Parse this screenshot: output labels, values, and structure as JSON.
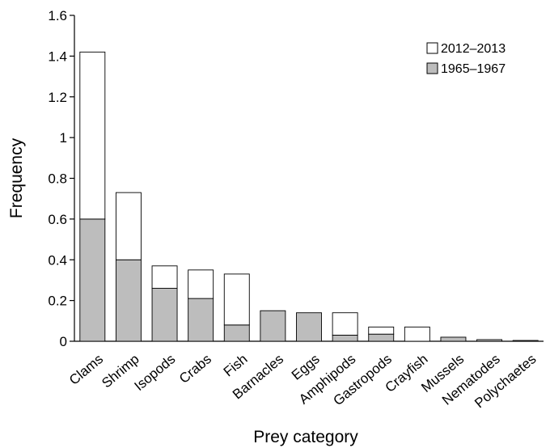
{
  "chart_data": {
    "type": "bar",
    "stacked": true,
    "categories": [
      "Clams",
      "Shrimp",
      "Isopods",
      "Crabs",
      "Fish",
      "Barnacles",
      "Eggs",
      "Amphipods",
      "Gastropods",
      "Crayfish",
      "Mussels",
      "Nematodes",
      "Polychaetes"
    ],
    "series": [
      {
        "name": "1965–1967",
        "color": "#bdbdbd",
        "values": [
          0.6,
          0.4,
          0.26,
          0.21,
          0.08,
          0.15,
          0.14,
          0.03,
          0.035,
          0.0,
          0.02,
          0.008,
          0.004
        ]
      },
      {
        "name": "2012–2013",
        "color": "#ffffff",
        "values": [
          0.82,
          0.33,
          0.11,
          0.14,
          0.25,
          0.0,
          0.0,
          0.11,
          0.035,
          0.07,
          0.0,
          0.0,
          0.0
        ]
      }
    ],
    "legend_order": [
      "2012–2013",
      "1965–1967"
    ],
    "legend_placement": "top-right",
    "title": "",
    "xlabel": "Prey category",
    "ylabel": "Frequency",
    "ylim": [
      0,
      1.6
    ],
    "yticks": [
      0,
      0.2,
      0.4,
      0.6,
      0.8,
      1,
      1.2,
      1.4,
      1.6
    ],
    "ytick_labels": [
      "0",
      "0.2",
      "0.4",
      "0.6",
      "0.8",
      "1",
      "1.2",
      "1.4",
      "1.6"
    ],
    "grid": false
  }
}
